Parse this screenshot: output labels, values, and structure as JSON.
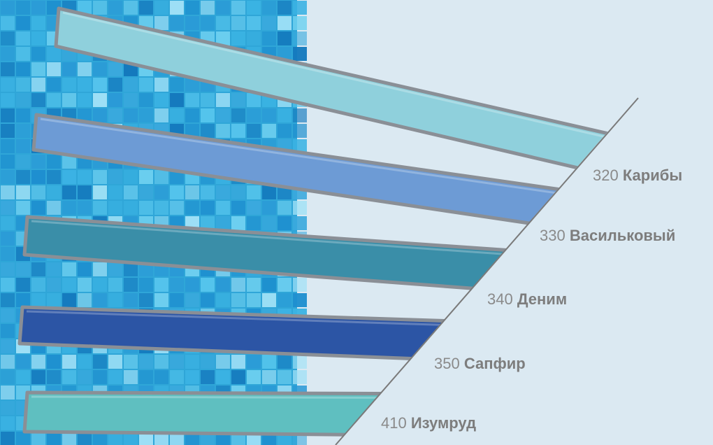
{
  "swatches": [
    {
      "code": "320",
      "name": "Карибы",
      "color": "#8fd0dc"
    },
    {
      "code": "330",
      "name": "Васильковый",
      "color": "#6d9bd5"
    },
    {
      "code": "340",
      "name": "Деним",
      "color": "#3a8ea8"
    },
    {
      "code": "350",
      "name": "Сапфир",
      "color": "#2c55a5"
    },
    {
      "code": "410",
      "name": "Изумруд",
      "color": "#5fbfc0"
    }
  ],
  "colors": {
    "background": "#dbe9f2",
    "mosaic_base": "#2fa6d8",
    "divider": "#7a7a7a",
    "strip_border": "#8a8f96"
  }
}
